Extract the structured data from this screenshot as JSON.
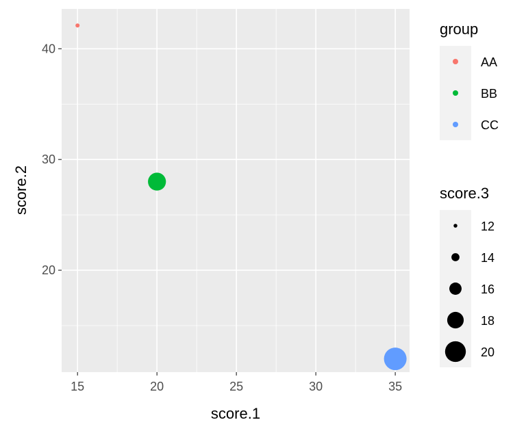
{
  "chart_data": {
    "type": "scatter",
    "xlabel": "score.1",
    "ylabel": "score.2",
    "xlim": [
      14.0,
      35.9
    ],
    "ylim": [
      10.8,
      43.6
    ],
    "x_ticks": [
      15,
      20,
      25,
      30,
      35
    ],
    "y_ticks": [
      20,
      30,
      40
    ],
    "grid": true,
    "points": [
      {
        "group": "AA",
        "x": 15,
        "y": 42.1,
        "size": 12
      },
      {
        "group": "BB",
        "x": 20,
        "y": 28.0,
        "size": 18
      },
      {
        "group": "CC",
        "x": 35,
        "y": 12.0,
        "size": 20
      }
    ],
    "legend_color": {
      "title": "group",
      "entries": [
        {
          "label": "AA",
          "color": "#F8766D"
        },
        {
          "label": "BB",
          "color": "#00BA38"
        },
        {
          "label": "CC",
          "color": "#619CFF"
        }
      ]
    },
    "legend_size": {
      "title": "score.3",
      "entries": [
        12,
        14,
        16,
        18,
        20
      ]
    },
    "colors": {
      "panel_background": "#EBEBEB",
      "grid_line": "#FFFFFF",
      "tick_text": "#4D4D4D",
      "legend_key_background": "#F2F2F2"
    },
    "legend_position": "right"
  }
}
